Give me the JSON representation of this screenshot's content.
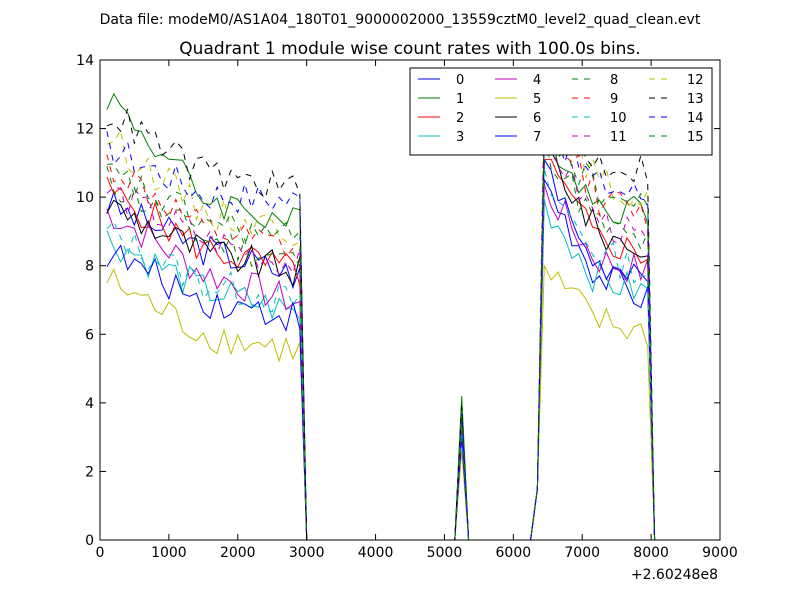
{
  "header": {
    "file_line": "Data file: modeM0/AS1A04_180T01_9000002000_13559cztM0_level2_quad_clean.evt"
  },
  "chart_data": {
    "type": "line",
    "title": "Quadrant 1 module wise count rates with 100.0s bins.",
    "xlabel": "",
    "ylabel": "",
    "x_offset_label": "+2.60248e8",
    "xlim": [
      0,
      9000
    ],
    "ylim": [
      0,
      14
    ],
    "x_ticks": [
      0,
      1000,
      2000,
      3000,
      4000,
      5000,
      6000,
      7000,
      8000,
      9000
    ],
    "y_ticks": [
      0,
      2,
      4,
      6,
      8,
      10,
      12,
      14
    ],
    "grid": false,
    "legend_position": "top-right",
    "legend_columns": 4,
    "baseline_gap": {
      "zero_start": 3000,
      "spike_x": 5250,
      "zero_end": 6250
    },
    "segment1": {
      "x_start": 100,
      "x_end": 2900,
      "x_drop": 3000
    },
    "segment2": {
      "x_rise_start": 6250,
      "x_rise_mid": 6350,
      "x_start": 6450,
      "x_end": 7950,
      "x_drop": 8050
    },
    "series": [
      {
        "name": "0",
        "color": "#0000ff",
        "dash": "solid",
        "seg1": [
          9.8,
          8.5,
          7.7
        ],
        "seg2": [
          10.5,
          7.8,
          7.0
        ],
        "spike": 3.5
      },
      {
        "name": "1",
        "color": "#008000",
        "dash": "solid",
        "seg1": [
          13.0,
          10.0,
          9.2
        ],
        "seg2": [
          12.0,
          9.8,
          9.6
        ],
        "spike": 4.2
      },
      {
        "name": "2",
        "color": "#ff0000",
        "dash": "solid",
        "seg1": [
          10.2,
          8.5,
          7.8
        ],
        "seg2": [
          11.0,
          8.8,
          8.3
        ],
        "spike": 3.6
      },
      {
        "name": "3",
        "color": "#00bfbf",
        "dash": "solid",
        "seg1": [
          8.8,
          7.3,
          6.6
        ],
        "seg2": [
          9.8,
          7.6,
          7.2
        ],
        "spike": 3.2
      },
      {
        "name": "4",
        "color": "#bf00bf",
        "dash": "solid",
        "seg1": [
          9.6,
          7.8,
          6.9
        ],
        "seg2": [
          10.2,
          8.2,
          7.8
        ],
        "spike": 3.4
      },
      {
        "name": "5",
        "color": "#bfbf00",
        "dash": "solid",
        "seg1": [
          7.6,
          6.0,
          5.5
        ],
        "seg2": [
          7.8,
          6.4,
          6.0
        ],
        "spike": 2.6
      },
      {
        "name": "6",
        "color": "#000000",
        "dash": "solid",
        "seg1": [
          9.8,
          8.4,
          7.8
        ],
        "seg2": [
          11.5,
          9.0,
          8.4
        ],
        "spike": 3.8
      },
      {
        "name": "7",
        "color": "#0000ff",
        "dash": "solid",
        "seg1": [
          8.4,
          7.0,
          6.5
        ],
        "seg2": [
          10.8,
          8.0,
          7.4
        ],
        "spike": 3.0
      },
      {
        "name": "8",
        "color": "#008000",
        "dash": "dashed",
        "seg1": [
          10.5,
          8.8,
          8.1
        ],
        "seg2": [
          11.6,
          9.2,
          8.6
        ],
        "spike": 3.9
      },
      {
        "name": "9",
        "color": "#ff0000",
        "dash": "dashed",
        "seg1": [
          11.0,
          9.0,
          8.4
        ],
        "seg2": [
          12.8,
          10.0,
          9.4
        ],
        "spike": 3.7
      },
      {
        "name": "10",
        "color": "#00bfbf",
        "dash": "dashed",
        "seg1": [
          9.0,
          7.5,
          6.9
        ],
        "seg2": [
          10.4,
          8.4,
          7.8
        ],
        "spike": 3.3
      },
      {
        "name": "11",
        "color": "#bf00bf",
        "dash": "dashed",
        "seg1": [
          10.2,
          8.8,
          8.0
        ],
        "seg2": [
          11.8,
          9.4,
          8.6
        ],
        "spike": 3.5
      },
      {
        "name": "12",
        "color": "#bfbf00",
        "dash": "dashed",
        "seg1": [
          11.8,
          9.6,
          9.0
        ],
        "seg2": [
          13.2,
          10.5,
          9.8
        ],
        "spike": 3.8
      },
      {
        "name": "13",
        "color": "#000000",
        "dash": "dashed",
        "seg1": [
          12.5,
          10.7,
          10.2
        ],
        "seg2": [
          12.6,
          11.0,
          10.8
        ],
        "spike": 3.9
      },
      {
        "name": "14",
        "color": "#0000ff",
        "dash": "dashed",
        "seg1": [
          11.5,
          10.1,
          9.9
        ],
        "seg2": [
          12.2,
          10.4,
          10.0
        ],
        "spike": 3.7
      },
      {
        "name": "15",
        "color": "#008000",
        "dash": "dashed",
        "seg1": [
          10.7,
          9.3,
          8.7
        ],
        "seg2": [
          12.0,
          10.2,
          9.6
        ],
        "spike": 3.6
      }
    ]
  }
}
